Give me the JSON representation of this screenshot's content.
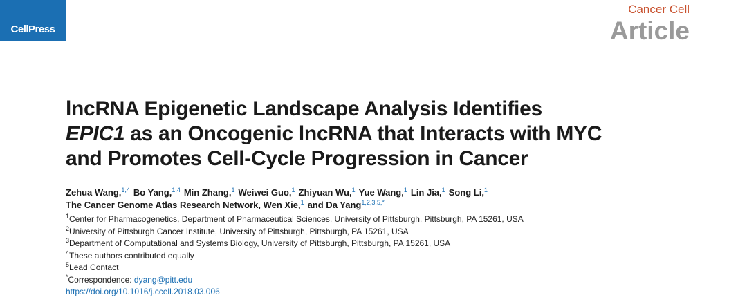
{
  "header": {
    "logo": "CellPress",
    "journal": "Cancer Cell",
    "article_type": "Article"
  },
  "title": {
    "line1": "lncRNA Epigenetic Landscape Analysis Identifies",
    "gene": "EPIC1",
    "line2": " as an Oncogenic lncRNA that Interacts with MYC",
    "line3": "and Promotes Cell-Cycle Progression in Cancer"
  },
  "authors": {
    "line1": [
      {
        "name": "Zehua Wang,",
        "sup": "1,4"
      },
      {
        "name": "Bo Yang,",
        "sup": "1,4"
      },
      {
        "name": "Min Zhang,",
        "sup": "1"
      },
      {
        "name": "Weiwei Guo,",
        "sup": "1"
      },
      {
        "name": "Zhiyuan Wu,",
        "sup": "1"
      },
      {
        "name": "Yue Wang,",
        "sup": "1"
      },
      {
        "name": "Lin Jia,",
        "sup": "1"
      },
      {
        "name": "Song Li,",
        "sup": "1"
      }
    ],
    "line2": [
      {
        "name": "The Cancer Genome Atlas Research Network, Wen Xie,",
        "sup": "1"
      },
      {
        "name": "and Da Yang",
        "sup": "1,2,3,5,*"
      }
    ]
  },
  "affiliations": [
    {
      "sup": "1",
      "text": "Center for Pharmacogenetics, Department of Pharmaceutical Sciences, University of Pittsburgh, Pittsburgh, PA 15261, USA"
    },
    {
      "sup": "2",
      "text": "University of Pittsburgh Cancer Institute, University of Pittsburgh, Pittsburgh, PA 15261, USA"
    },
    {
      "sup": "3",
      "text": "Department of Computational and Systems Biology, University of Pittsburgh, Pittsburgh, PA 15261, USA"
    },
    {
      "sup": "4",
      "text": "These authors contributed equally"
    },
    {
      "sup": "5",
      "text": "Lead Contact"
    }
  ],
  "correspondence": {
    "sup": "*",
    "label": "Correspondence: ",
    "email": "dyang@pitt.edu"
  },
  "doi": "https://doi.org/10.1016/j.ccell.2018.03.006"
}
